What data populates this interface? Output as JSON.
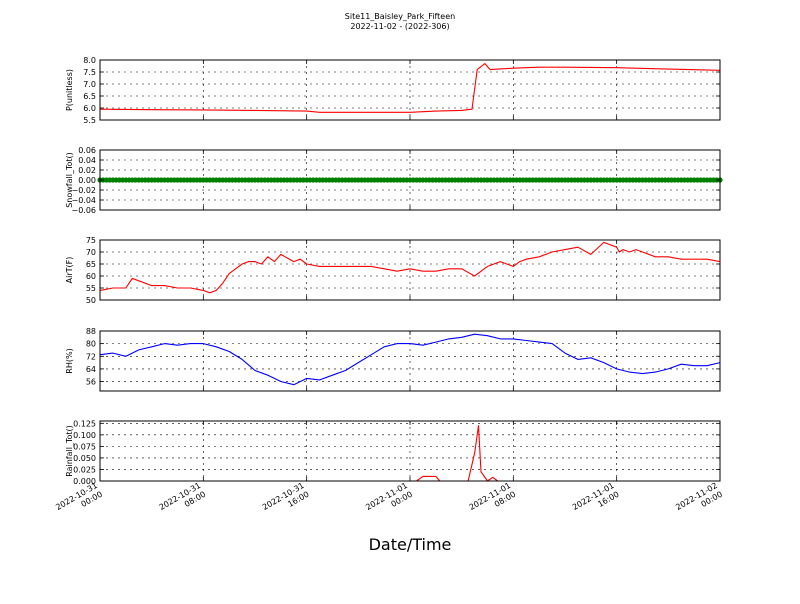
{
  "figure": {
    "title_line1": "Site11_Baisley_Park_Fifteen",
    "title_line2": "2022-11-02 - (2022-306)",
    "xlabel": "Date/Time",
    "xticks": [
      {
        "line1": "2022-10-31",
        "line2": "00:00"
      },
      {
        "line1": "2022-10-31",
        "line2": "08:00"
      },
      {
        "line1": "2022-10-31",
        "line2": "16:00"
      },
      {
        "line1": "2022-11-01",
        "line2": "00:00"
      },
      {
        "line1": "2022-11-01",
        "line2": "08:00"
      },
      {
        "line1": "2022-11-01",
        "line2": "16:00"
      },
      {
        "line1": "2022-11-02",
        "line2": "00:00"
      }
    ]
  },
  "chart_data": [
    {
      "type": "line",
      "ylabel": "P(unitless)",
      "color": "#ff0000",
      "ylim": [
        5.5,
        8.0
      ],
      "yticks": [
        "5.5",
        "6.0",
        "6.5",
        "7.0",
        "7.5",
        "8.0"
      ],
      "xlim": [
        "2022-10-31 00:00",
        "2022-11-02 00:00"
      ],
      "grid": true,
      "series": [
        {
          "x_hours": [
            0,
            4,
            8,
            12,
            16,
            17,
            20,
            24,
            26,
            28,
            28.8,
            29.2,
            29.8,
            30.2,
            30.8,
            32,
            34,
            36,
            40,
            44,
            48
          ],
          "values": [
            5.95,
            5.93,
            5.92,
            5.9,
            5.87,
            5.82,
            5.82,
            5.82,
            5.87,
            5.9,
            5.95,
            7.6,
            7.85,
            7.6,
            7.62,
            7.66,
            7.7,
            7.7,
            7.68,
            7.62,
            7.57
          ]
        }
      ]
    },
    {
      "type": "scatter",
      "ylabel": "Snowfall_Tot()",
      "color": "#008000",
      "ylim": [
        -0.06,
        0.06
      ],
      "yticks": [
        "−0.06",
        "−0.04",
        "−0.02",
        "0.00",
        "0.02",
        "0.04",
        "0.06"
      ],
      "xlim": [
        "2022-10-31 00:00",
        "2022-11-02 00:00"
      ],
      "grid": true,
      "series": [
        {
          "constant_value": 0.0,
          "x_range_hours": [
            0,
            48
          ]
        }
      ]
    },
    {
      "type": "line",
      "ylabel": "AirT(F)",
      "color": "#ff0000",
      "ylim": [
        50,
        75
      ],
      "yticks": [
        "50",
        "55",
        "60",
        "65",
        "70",
        "75"
      ],
      "xlim": [
        "2022-10-31 00:00",
        "2022-11-02 00:00"
      ],
      "grid": true,
      "series": [
        {
          "x_hours": [
            0,
            1,
            2,
            2.5,
            3,
            4,
            5,
            6,
            7,
            8,
            8.5,
            9,
            9.5,
            10,
            10.5,
            11,
            11.5,
            12,
            12.5,
            13,
            13.5,
            14,
            15,
            15.5,
            16,
            17,
            18,
            19,
            20,
            21,
            22,
            23,
            24,
            25,
            26,
            27,
            28,
            29,
            30,
            31,
            32,
            32.5,
            33,
            34,
            35,
            36,
            37,
            38,
            39,
            40,
            40.2,
            40.5,
            41,
            41.5,
            42,
            43,
            44,
            45,
            46,
            47,
            48
          ],
          "values": [
            54,
            55,
            55,
            59,
            58,
            56,
            56,
            55,
            55,
            54,
            53,
            54,
            57,
            61,
            63,
            65,
            66,
            66,
            65,
            68,
            66,
            69,
            66,
            67,
            65,
            64,
            64,
            64,
            64,
            64,
            63,
            62,
            63,
            62,
            62,
            63,
            63,
            60,
            64,
            66,
            64,
            66,
            67,
            68,
            70,
            71,
            72,
            69,
            74,
            72,
            70,
            71,
            70,
            71,
            70,
            68,
            68,
            67,
            67,
            67,
            66
          ]
        }
      ]
    },
    {
      "type": "line",
      "ylabel": "RH(%)",
      "color": "#0000ff",
      "ylim": [
        50,
        88
      ],
      "yticks": [
        "56",
        "64",
        "72",
        "80",
        "88"
      ],
      "xlim": [
        "2022-10-31 00:00",
        "2022-11-02 00:00"
      ],
      "grid": true,
      "series": [
        {
          "x_hours": [
            0,
            1,
            2,
            3,
            4,
            5,
            6,
            7,
            8,
            9,
            10,
            11,
            12,
            13,
            13.5,
            14,
            15,
            16,
            17,
            18,
            19,
            20,
            21,
            22,
            23,
            24,
            25,
            26,
            27,
            28,
            29,
            30,
            31,
            32,
            33,
            34,
            35,
            36,
            37,
            38,
            39,
            40,
            41,
            42,
            43,
            44,
            45,
            46,
            47,
            48
          ],
          "values": [
            73,
            74,
            72,
            76,
            78,
            80,
            79,
            80,
            80,
            78,
            75,
            70,
            63,
            60,
            58,
            56,
            54,
            58,
            57,
            60,
            63,
            68,
            73,
            78,
            80,
            80,
            79,
            81,
            83,
            84,
            86,
            85,
            83,
            83,
            82,
            81,
            80,
            74,
            70,
            71,
            68,
            64,
            62,
            61,
            62,
            64,
            67,
            66,
            66,
            68
          ]
        }
      ]
    },
    {
      "type": "line",
      "ylabel": "Rainfall_Tot()",
      "color": "#ff0000",
      "ylim": [
        0,
        0.13
      ],
      "yticks": [
        "0.000",
        "0.025",
        "0.050",
        "0.075",
        "0.100",
        "0.125"
      ],
      "xlim": [
        "2022-10-31 00:00",
        "2022-11-02 00:00"
      ],
      "grid": true,
      "series": [
        {
          "x_hours": [
            0,
            24.5,
            25,
            26,
            26.3,
            26.6,
            27,
            28,
            28.5,
            29,
            29.3,
            29.5,
            30,
            30.4,
            30.8,
            31,
            48
          ],
          "values": [
            0,
            0,
            0.01,
            0.01,
            0,
            0,
            0,
            0,
            0,
            0.06,
            0.12,
            0.02,
            0,
            0.008,
            0,
            0,
            0
          ]
        }
      ]
    }
  ]
}
